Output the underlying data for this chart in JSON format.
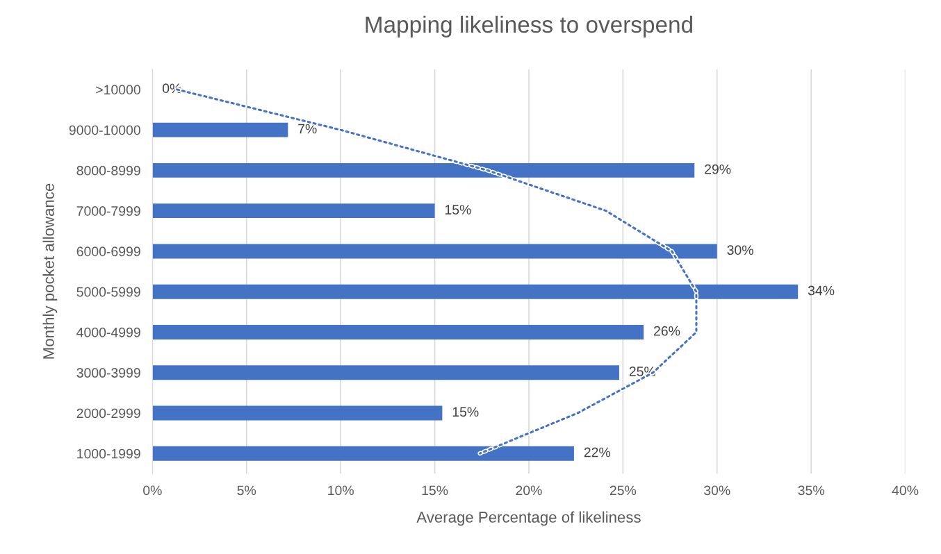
{
  "chart_data": {
    "type": "bar",
    "orientation": "horizontal",
    "title": "Mapping likeliness to overspend",
    "xlabel": "Average Percentage of likeliness",
    "ylabel": "Monthly pocket allowance",
    "categories": [
      ">10000",
      "9000-10000",
      "8000-8999",
      "7000-7999",
      "6000-6999",
      "5000-5999",
      "4000-4999",
      "3000-3999",
      "2000-2999",
      "1000-1999"
    ],
    "series": [
      {
        "color": "#4472c4",
        "values": [
          0,
          7.2,
          28.8,
          15.0,
          30.0,
          34.3,
          26.1,
          24.8,
          15.4,
          22.4
        ],
        "value_labels": [
          "0%",
          "7%",
          "29%",
          "15%",
          "30%",
          "34%",
          "26%",
          "25%",
          "15%",
          "22%"
        ]
      },
      {
        "type": "line",
        "color": "#4472c4",
        "line_style": "dotted",
        "values": [
          1.3,
          10.0,
          17.8,
          24.1,
          27.6,
          28.9,
          28.9,
          26.6,
          22.6,
          17.4
        ]
      }
    ],
    "xlim": [
      0,
      40
    ],
    "xticks": [
      {
        "value": 0,
        "label": "0%"
      },
      {
        "value": 5,
        "label": "5%"
      },
      {
        "value": 10,
        "label": "10%"
      },
      {
        "value": 15,
        "label": "15%"
      },
      {
        "value": 20,
        "label": "20%"
      },
      {
        "value": 25,
        "label": "25%"
      },
      {
        "value": 30,
        "label": "30%"
      },
      {
        "value": 35,
        "label": "35%"
      },
      {
        "value": 40,
        "label": "40%"
      }
    ],
    "grid": "x",
    "legend": false
  }
}
